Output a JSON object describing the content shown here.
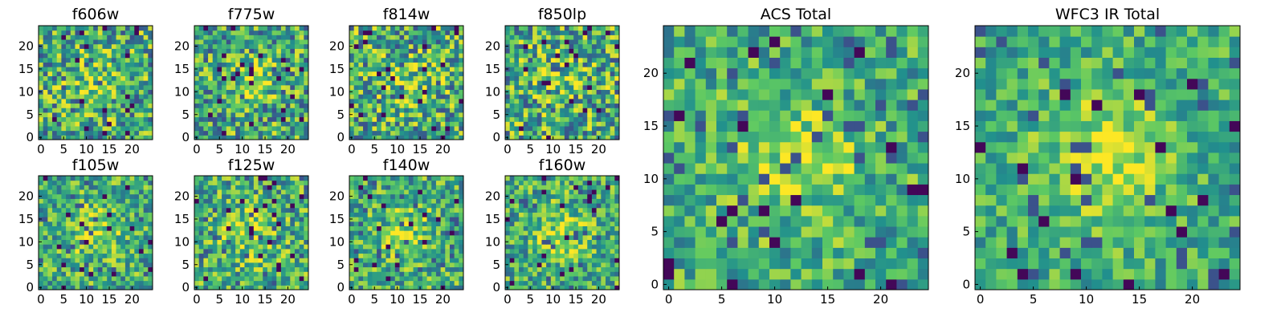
{
  "figure": {
    "colormap": [
      "#440154",
      "#3b528b",
      "#21908d",
      "#5dc963",
      "#fde725"
    ]
  },
  "chart_data": [
    {
      "type": "heatmap",
      "title": "f606w",
      "x_ticks": [
        "0",
        "5",
        "10",
        "15",
        "20"
      ],
      "y_ticks": [
        "0",
        "5",
        "10",
        "15",
        "20"
      ],
      "xlim": [
        0,
        24
      ],
      "ylim": [
        0,
        24
      ],
      "grid_size": 25,
      "colormap": "viridis",
      "seed": 11,
      "blob": 0.25,
      "noise": 0.95
    },
    {
      "type": "heatmap",
      "title": "f775w",
      "x_ticks": [
        "0",
        "5",
        "10",
        "15",
        "20"
      ],
      "y_ticks": [
        "0",
        "5",
        "10",
        "15",
        "20"
      ],
      "xlim": [
        0,
        24
      ],
      "ylim": [
        0,
        24
      ],
      "grid_size": 25,
      "colormap": "viridis",
      "seed": 23,
      "blob": 0.35,
      "noise": 0.9
    },
    {
      "type": "heatmap",
      "title": "f814w",
      "x_ticks": [
        "0",
        "5",
        "10",
        "15",
        "20"
      ],
      "y_ticks": [
        "0",
        "5",
        "10",
        "15",
        "20"
      ],
      "xlim": [
        0,
        24
      ],
      "ylim": [
        0,
        24
      ],
      "grid_size": 25,
      "colormap": "viridis",
      "seed": 37,
      "blob": 0.35,
      "noise": 1.0
    },
    {
      "type": "heatmap",
      "title": "f850lp",
      "x_ticks": [
        "0",
        "5",
        "10",
        "15",
        "20"
      ],
      "y_ticks": [
        "0",
        "5",
        "10",
        "15",
        "20"
      ],
      "xlim": [
        0,
        24
      ],
      "ylim": [
        0,
        24
      ],
      "grid_size": 25,
      "colormap": "viridis",
      "seed": 41,
      "blob": 0.2,
      "noise": 1.0
    },
    {
      "type": "heatmap",
      "title": "f105w",
      "x_ticks": [
        "0",
        "5",
        "10",
        "15",
        "20"
      ],
      "y_ticks": [
        "0",
        "5",
        "10",
        "15",
        "20"
      ],
      "xlim": [
        0,
        24
      ],
      "ylim": [
        0,
        24
      ],
      "grid_size": 25,
      "colormap": "viridis",
      "seed": 53,
      "blob": 0.45,
      "noise": 0.8
    },
    {
      "type": "heatmap",
      "title": "f125w",
      "x_ticks": [
        "0",
        "5",
        "10",
        "15",
        "20"
      ],
      "y_ticks": [
        "0",
        "5",
        "10",
        "15",
        "20"
      ],
      "xlim": [
        0,
        24
      ],
      "ylim": [
        0,
        24
      ],
      "grid_size": 25,
      "colormap": "viridis",
      "seed": 61,
      "blob": 0.45,
      "noise": 0.85
    },
    {
      "type": "heatmap",
      "title": "f140w",
      "x_ticks": [
        "0",
        "5",
        "10",
        "15",
        "20"
      ],
      "y_ticks": [
        "0",
        "5",
        "10",
        "15",
        "20"
      ],
      "xlim": [
        0,
        24
      ],
      "ylim": [
        0,
        24
      ],
      "grid_size": 25,
      "colormap": "viridis",
      "seed": 73,
      "blob": 0.4,
      "noise": 0.8
    },
    {
      "type": "heatmap",
      "title": "f160w",
      "x_ticks": [
        "0",
        "5",
        "10",
        "15",
        "20"
      ],
      "y_ticks": [
        "0",
        "5",
        "10",
        "15",
        "20"
      ],
      "xlim": [
        0,
        24
      ],
      "ylim": [
        0,
        24
      ],
      "grid_size": 25,
      "colormap": "viridis",
      "seed": 89,
      "blob": 0.45,
      "noise": 0.8
    },
    {
      "type": "heatmap",
      "title": "ACS Total",
      "x_ticks": [
        "0",
        "5",
        "10",
        "15",
        "20"
      ],
      "y_ticks": [
        "0",
        "5",
        "10",
        "15",
        "20"
      ],
      "xlim": [
        0,
        24
      ],
      "ylim": [
        0,
        24
      ],
      "grid_size": 25,
      "colormap": "viridis",
      "seed": 101,
      "blob": 0.5,
      "noise": 0.7
    },
    {
      "type": "heatmap",
      "title": "WFC3 IR Total",
      "x_ticks": [
        "0",
        "5",
        "10",
        "15",
        "20"
      ],
      "y_ticks": [
        "0",
        "5",
        "10",
        "15",
        "20"
      ],
      "xlim": [
        0,
        24
      ],
      "ylim": [
        0,
        24
      ],
      "grid_size": 25,
      "colormap": "viridis",
      "seed": 131,
      "blob": 0.6,
      "noise": 0.6
    }
  ]
}
